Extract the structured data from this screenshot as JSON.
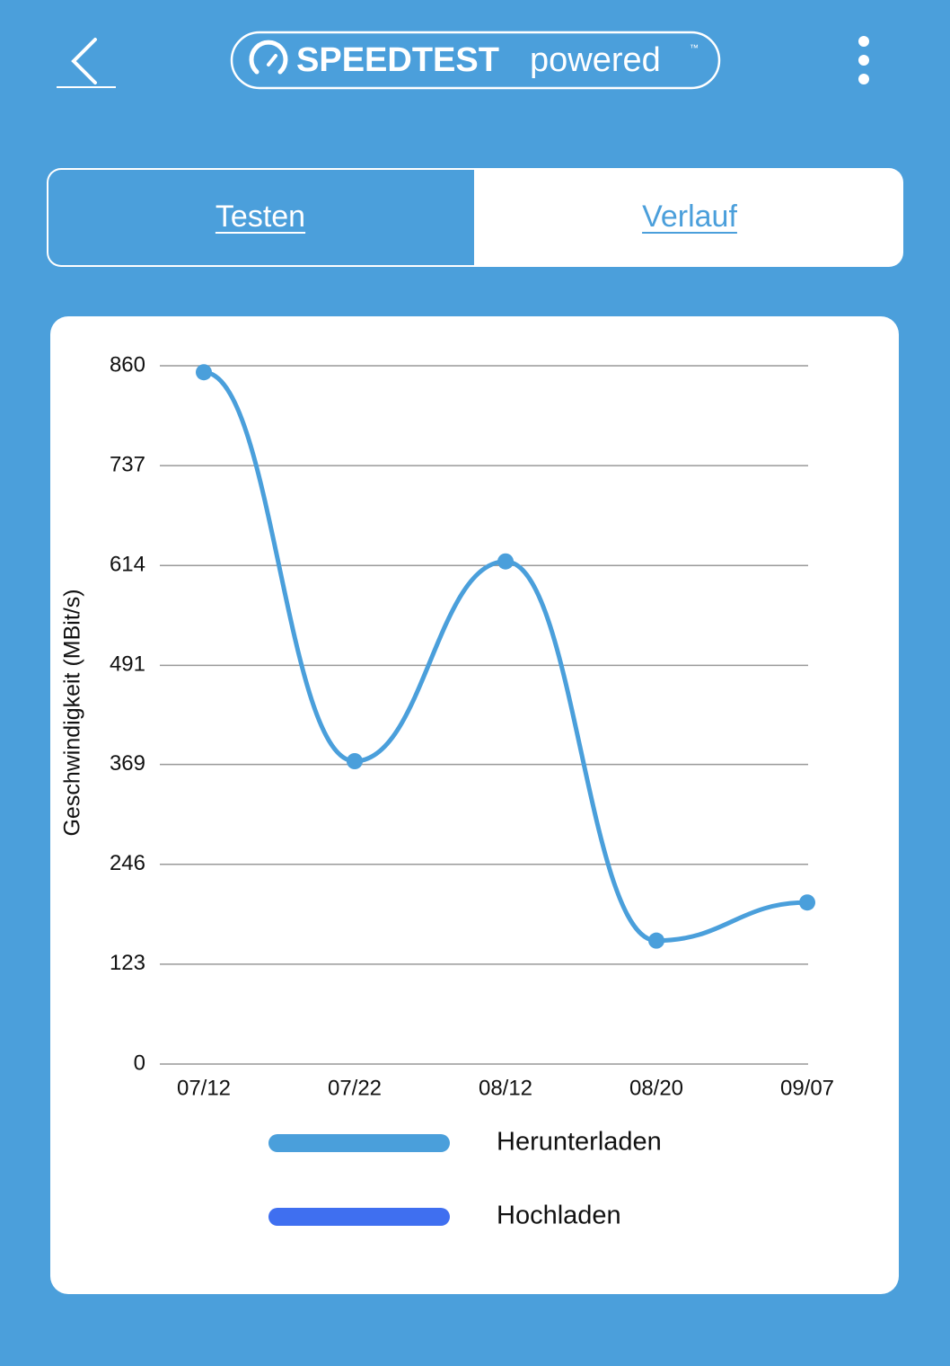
{
  "header": {
    "brand": "SPEEDTEST",
    "suffix": "powered",
    "trademark": "™"
  },
  "tabs": [
    "Testen",
    "Verlauf"
  ],
  "chart_data": {
    "type": "line",
    "y_label": "Geschwindigkeit (MBit/s)",
    "categories": [
      "07/12",
      "07/22",
      "08/12",
      "08/20",
      "09/07"
    ],
    "series": [
      {
        "name": "Herunterladen",
        "color": "#4a9fdb",
        "values": [
          852,
          373,
          619,
          152,
          199
        ]
      },
      {
        "name": "Hochladen",
        "color": "#3f6ff0",
        "values": [
          null,
          null,
          null,
          null,
          null
        ]
      }
    ],
    "ylim": [
      0,
      860
    ],
    "yticks": [
      0,
      123,
      246,
      369,
      491,
      614,
      737,
      860
    ],
    "grid": true,
    "legend": "bottom"
  }
}
